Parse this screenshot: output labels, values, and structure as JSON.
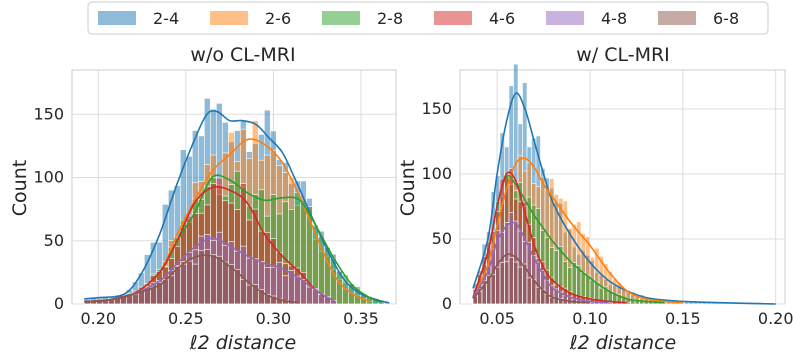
{
  "colors": {
    "2-4": "#1f77b4",
    "2-6": "#ff7f0e",
    "2-8": "#2ca02c",
    "4-6": "#d62728",
    "4-8": "#9467bd",
    "6-8": "#8c564b",
    "grid": "#dddddd",
    "frame": "#cccccc"
  },
  "legend": [
    "2-4",
    "2-6",
    "2-8",
    "4-6",
    "4-8",
    "6-8"
  ],
  "chart_data": [
    {
      "type": "histogram",
      "title": "w/o CL-MRI",
      "xlabel": "ℓ2 distance",
      "ylabel": "Count",
      "xlim": [
        0.185,
        0.37
      ],
      "ylim": [
        0,
        185
      ],
      "xticks": [
        0.2,
        0.25,
        0.3,
        0.35
      ],
      "xtick_labels": [
        "0.20",
        "0.25",
        "0.30",
        "0.35"
      ],
      "yticks": [
        0,
        50,
        100,
        150
      ],
      "ytick_labels": [
        "0",
        "50",
        "100",
        "150"
      ],
      "grid": true,
      "series": [
        {
          "name": "2-4",
          "x": [
            0.192,
            0.2,
            0.215,
            0.225,
            0.235,
            0.245,
            0.255,
            0.262,
            0.268,
            0.275,
            0.282,
            0.29,
            0.297,
            0.305,
            0.312,
            0.32,
            0.33,
            0.34,
            0.35,
            0.36,
            0.366
          ],
          "y": [
            4,
            5,
            8,
            25,
            55,
            95,
            130,
            150,
            152,
            145,
            145,
            142,
            132,
            120,
            100,
            75,
            45,
            20,
            8,
            3,
            1
          ]
        },
        {
          "name": "2-6",
          "x": [
            0.192,
            0.205,
            0.22,
            0.235,
            0.245,
            0.255,
            0.265,
            0.275,
            0.285,
            0.295,
            0.305,
            0.315,
            0.325,
            0.335,
            0.345,
            0.355
          ],
          "y": [
            2,
            3,
            8,
            25,
            55,
            82,
            105,
            118,
            130,
            126,
            112,
            85,
            52,
            22,
            8,
            2
          ]
        },
        {
          "name": "2-8",
          "x": [
            0.192,
            0.205,
            0.22,
            0.235,
            0.245,
            0.255,
            0.265,
            0.275,
            0.285,
            0.295,
            0.305,
            0.315,
            0.325,
            0.335,
            0.345,
            0.355,
            0.362
          ],
          "y": [
            2,
            3,
            8,
            25,
            50,
            72,
            100,
            98,
            88,
            82,
            84,
            82,
            60,
            35,
            15,
            5,
            1
          ]
        },
        {
          "name": "4-6",
          "x": [
            0.192,
            0.205,
            0.22,
            0.235,
            0.245,
            0.255,
            0.265,
            0.275,
            0.285,
            0.295,
            0.305,
            0.315,
            0.325,
            0.335
          ],
          "y": [
            2,
            3,
            8,
            25,
            50,
            80,
            92,
            90,
            80,
            55,
            38,
            25,
            10,
            2
          ]
        },
        {
          "name": "4-8",
          "x": [
            0.192,
            0.205,
            0.22,
            0.235,
            0.245,
            0.255,
            0.265,
            0.275,
            0.285,
            0.295,
            0.305,
            0.315,
            0.325,
            0.335
          ],
          "y": [
            2,
            3,
            8,
            18,
            32,
            45,
            52,
            46,
            38,
            32,
            28,
            20,
            10,
            2
          ]
        },
        {
          "name": "6-8",
          "x": [
            0.192,
            0.205,
            0.22,
            0.235,
            0.245,
            0.255,
            0.265,
            0.275,
            0.285,
            0.295,
            0.305,
            0.315
          ],
          "y": [
            2,
            3,
            8,
            15,
            28,
            37,
            38,
            30,
            18,
            8,
            3,
            1
          ]
        }
      ]
    },
    {
      "type": "histogram",
      "title": "w/ CL-MRI",
      "xlabel": "ℓ2 distance",
      "ylabel": "Count",
      "xlim": [
        0.03,
        0.205
      ],
      "ylim": [
        0,
        180
      ],
      "xticks": [
        0.05,
        0.1,
        0.15,
        0.2
      ],
      "xtick_labels": [
        "0.05",
        "0.10",
        "0.15",
        "0.20"
      ],
      "yticks": [
        0,
        50,
        100,
        150
      ],
      "ytick_labels": [
        "0",
        "50",
        "100",
        "150"
      ],
      "grid": true,
      "series": [
        {
          "name": "2-4",
          "x": [
            0.037,
            0.045,
            0.05,
            0.055,
            0.06,
            0.065,
            0.07,
            0.075,
            0.08,
            0.09,
            0.1,
            0.11,
            0.12,
            0.13,
            0.14,
            0.15,
            0.17,
            0.2
          ],
          "y": [
            12,
            50,
            100,
            140,
            162,
            150,
            125,
            100,
            78,
            52,
            32,
            18,
            10,
            5,
            3,
            2,
            1,
            0
          ]
        },
        {
          "name": "2-6",
          "x": [
            0.037,
            0.045,
            0.05,
            0.055,
            0.06,
            0.065,
            0.07,
            0.075,
            0.08,
            0.09,
            0.1,
            0.11,
            0.12,
            0.13,
            0.14,
            0.15
          ],
          "y": [
            5,
            30,
            60,
            88,
            108,
            112,
            105,
            92,
            82,
            62,
            45,
            25,
            10,
            4,
            2,
            1
          ]
        },
        {
          "name": "2-8",
          "x": [
            0.037,
            0.045,
            0.05,
            0.055,
            0.06,
            0.065,
            0.07,
            0.075,
            0.08,
            0.09,
            0.1,
            0.11,
            0.12,
            0.13,
            0.14
          ],
          "y": [
            5,
            40,
            75,
            98,
            92,
            80,
            68,
            58,
            48,
            32,
            20,
            10,
            4,
            2,
            1
          ]
        },
        {
          "name": "4-6",
          "x": [
            0.037,
            0.045,
            0.05,
            0.055,
            0.06,
            0.065,
            0.07,
            0.075,
            0.08,
            0.09,
            0.1,
            0.11,
            0.12
          ],
          "y": [
            5,
            40,
            75,
            100,
            95,
            70,
            45,
            28,
            18,
            8,
            4,
            2,
            1
          ]
        },
        {
          "name": "4-8",
          "x": [
            0.037,
            0.045,
            0.05,
            0.055,
            0.06,
            0.065,
            0.07,
            0.075,
            0.08,
            0.09,
            0.1,
            0.11
          ],
          "y": [
            5,
            25,
            48,
            60,
            62,
            50,
            35,
            22,
            12,
            5,
            2,
            1
          ]
        },
        {
          "name": "6-8",
          "x": [
            0.037,
            0.045,
            0.05,
            0.055,
            0.06,
            0.065,
            0.07,
            0.075,
            0.08,
            0.09,
            0.1
          ],
          "y": [
            4,
            18,
            30,
            38,
            36,
            28,
            18,
            10,
            5,
            2,
            1
          ]
        }
      ]
    }
  ]
}
